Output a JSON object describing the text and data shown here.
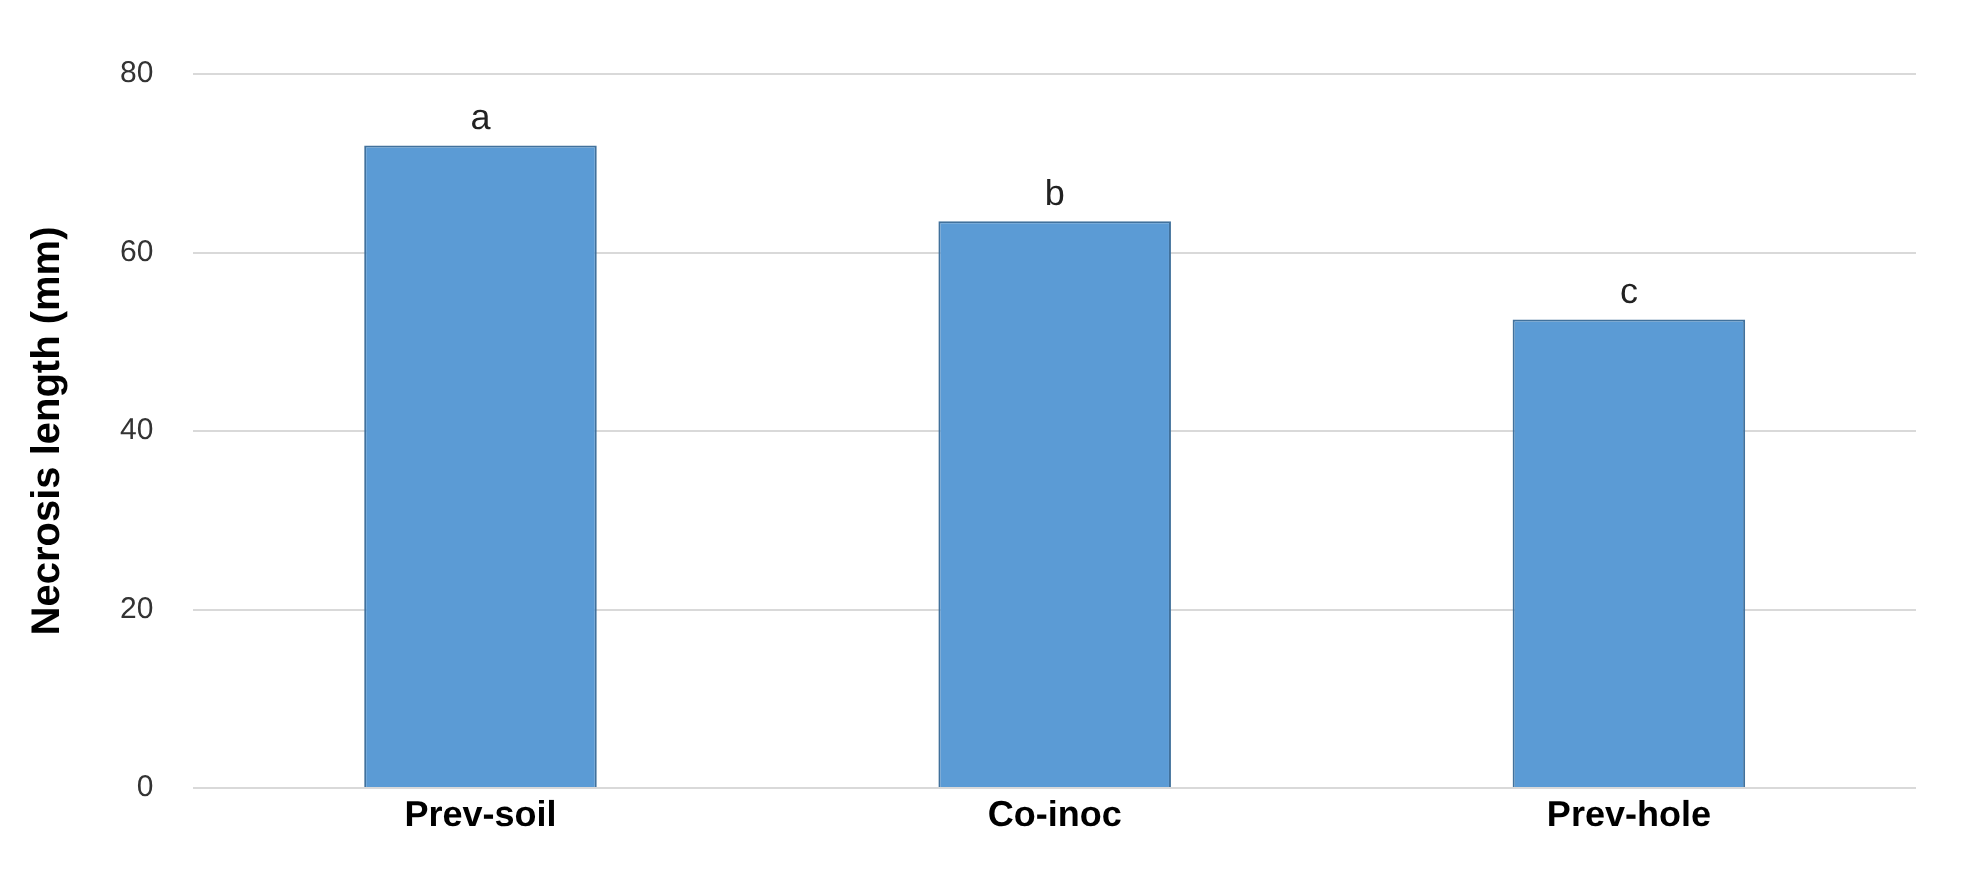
{
  "chart_data": {
    "type": "bar",
    "ylabel": "Necrosis length (mm)",
    "categories": [
      "Prev-soil",
      "Co-inoc",
      "Prev-hole"
    ],
    "values": [
      72,
      63.5,
      52.5
    ],
    "color": "#5b9bd5",
    "ylim": [
      0,
      80
    ],
    "yticks": [
      0,
      20,
      40,
      60,
      80
    ],
    "grid": "y",
    "annotations": [
      {
        "text": "a",
        "x": "Prev-soil",
        "y": 72
      },
      {
        "text": "b",
        "x": "Co-inoc",
        "y": 63.5
      },
      {
        "text": "c",
        "x": "Prev-hole",
        "y": 52.5
      }
    ]
  }
}
